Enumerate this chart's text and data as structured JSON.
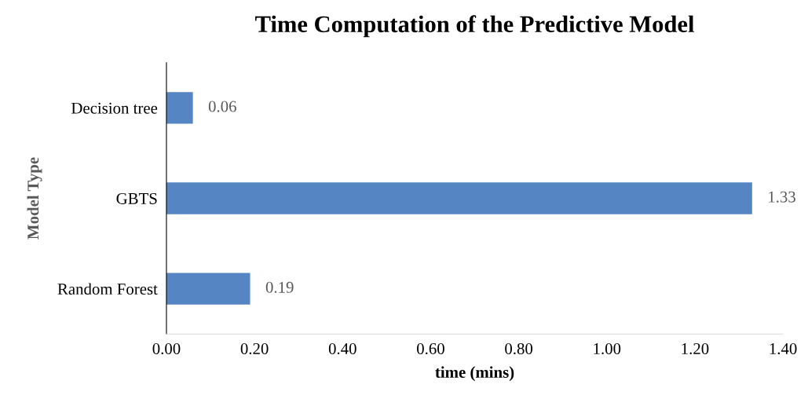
{
  "chart_data": {
    "type": "bar",
    "orientation": "horizontal",
    "title": "Time Computation of the Predictive Model",
    "xlabel": "time (mins)",
    "ylabel": "Model Type",
    "categories": [
      "Decision tree",
      "GBTS",
      "Random Forest"
    ],
    "values": [
      0.06,
      1.33,
      0.19
    ],
    "color": "#5585c3",
    "xlim": [
      0,
      1.4
    ],
    "xticks": [
      {
        "value": 0,
        "label": "0.00"
      },
      {
        "value": 0.2,
        "label": "0.20"
      },
      {
        "value": 0.4,
        "label": "0.40"
      },
      {
        "value": 0.6,
        "label": "0.60"
      },
      {
        "value": 0.8,
        "label": "0.80"
      },
      {
        "value": 1.0,
        "label": "1.00"
      },
      {
        "value": 1.2,
        "label": "1.20"
      },
      {
        "value": 1.4,
        "label": "1.40"
      }
    ],
    "data_labels": true,
    "grid": false,
    "legend": false
  }
}
